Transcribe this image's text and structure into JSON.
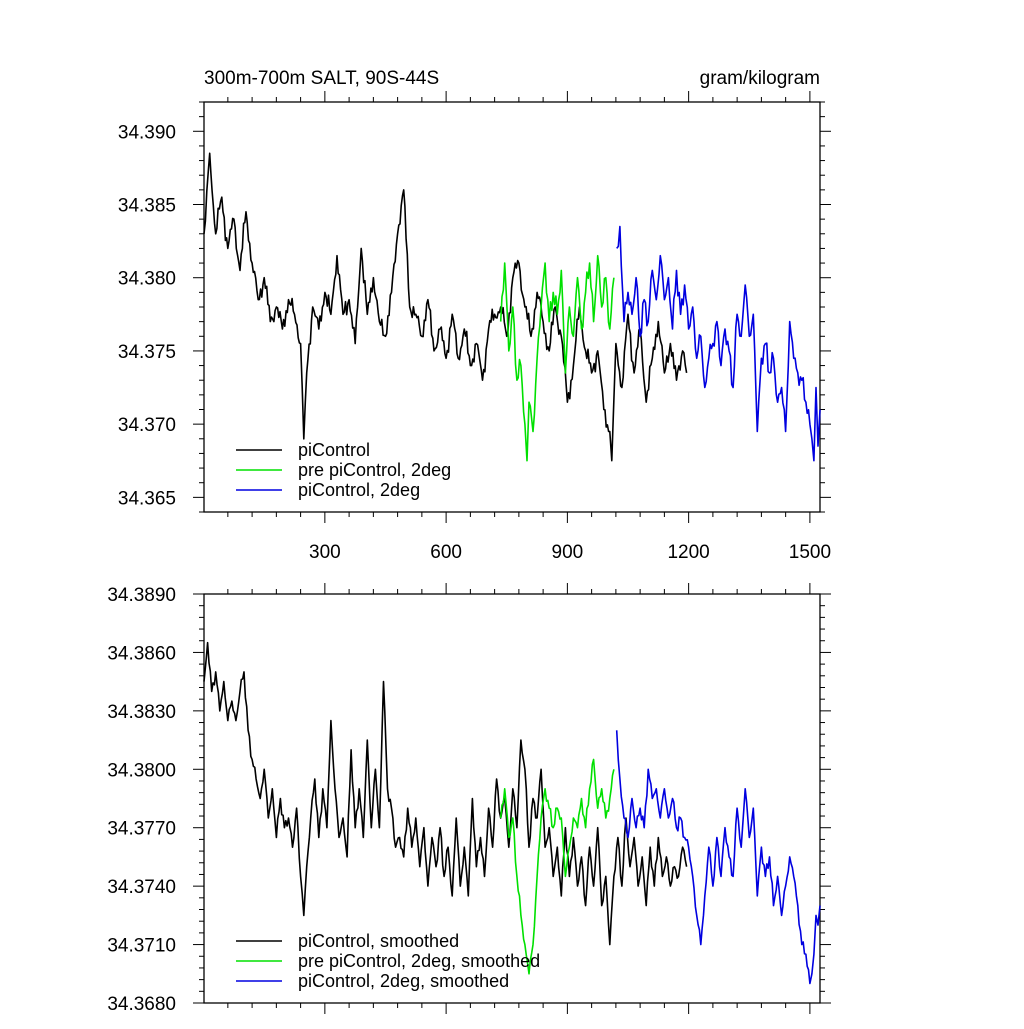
{
  "header": {
    "title": "300m-700m SALT, 90S-44S",
    "units": "gram/kilogram"
  },
  "colors": {
    "piControl": "#000000",
    "pre_piControl_2deg": "#00e000",
    "piControl_2deg": "#0000e0"
  },
  "chart_data": [
    {
      "type": "line",
      "title": "300m-700m SALT, 90S-44S",
      "units": "gram/kilogram",
      "xlabel": "",
      "ylabel": "",
      "xlim": [
        1,
        1525
      ],
      "ylim": [
        34.364,
        34.392
      ],
      "x_ticks": [
        300,
        600,
        900,
        1200,
        1500
      ],
      "x_tick_labels": [
        "300",
        "600",
        "900",
        "1200",
        "1500"
      ],
      "y_ticks": [
        34.365,
        34.37,
        34.375,
        34.38,
        34.385,
        34.39
      ],
      "y_tick_labels": [
        "34.365",
        "34.370",
        "34.375",
        "34.380",
        "34.385",
        "34.390"
      ],
      "grid": false,
      "legend": {
        "position": "bottom-left",
        "labels": [
          "piControl",
          "pre piControl, 2deg",
          "piControl, 2deg"
        ]
      },
      "series": [
        {
          "name": "piControl",
          "color": "#000000",
          "x": [
            1,
            15,
            30,
            45,
            60,
            75,
            90,
            105,
            120,
            135,
            150,
            165,
            180,
            195,
            210,
            225,
            240,
            248,
            255,
            270,
            285,
            300,
            315,
            330,
            345,
            360,
            375,
            390,
            405,
            420,
            435,
            450,
            465,
            480,
            495,
            510,
            525,
            540,
            555,
            570,
            585,
            600,
            615,
            630,
            645,
            660,
            675,
            690,
            705,
            720,
            735,
            750,
            765,
            780,
            795,
            810,
            825,
            840,
            855,
            870,
            885,
            900,
            915,
            930,
            945,
            960,
            975,
            990,
            1005,
            1010,
            1020,
            1035,
            1050,
            1065,
            1080,
            1095,
            1110,
            1125,
            1140,
            1155,
            1170,
            1185,
            1195
          ],
          "y": [
            34.383,
            34.3885,
            34.383,
            34.3855,
            34.382,
            34.384,
            34.3805,
            34.3845,
            34.381,
            34.3785,
            34.38,
            34.377,
            34.378,
            34.3765,
            34.3785,
            34.3775,
            34.3755,
            34.369,
            34.3735,
            34.378,
            34.3765,
            34.379,
            34.3775,
            34.3815,
            34.3775,
            34.3785,
            34.3755,
            34.382,
            34.3775,
            34.38,
            34.377,
            34.376,
            34.379,
            34.383,
            34.386,
            34.378,
            34.3775,
            34.376,
            34.3785,
            34.375,
            34.3765,
            34.3745,
            34.3775,
            34.3745,
            34.3765,
            34.374,
            34.3755,
            34.373,
            34.3765,
            34.3775,
            34.378,
            34.376,
            34.38,
            34.381,
            34.378,
            34.376,
            34.379,
            34.377,
            34.375,
            34.378,
            34.376,
            34.3715,
            34.374,
            34.378,
            34.375,
            34.3735,
            34.375,
            34.371,
            34.3695,
            34.3675,
            34.3755,
            34.3725,
            34.3775,
            34.3735,
            34.3765,
            34.3715,
            34.3745,
            34.377,
            34.3735,
            34.3755,
            34.373,
            34.375,
            34.3735
          ]
        },
        {
          "name": "pre piControl, 2deg",
          "color": "#00e000",
          "x": [
            735,
            745,
            755,
            765,
            775,
            785,
            795,
            800,
            805,
            815,
            825,
            835,
            845,
            855,
            865,
            875,
            885,
            895,
            905,
            915,
            925,
            935,
            945,
            955,
            965,
            975,
            985,
            995,
            1005,
            1015
          ],
          "y": [
            34.377,
            34.381,
            34.375,
            34.378,
            34.373,
            34.374,
            34.37,
            34.3675,
            34.3715,
            34.3695,
            34.3745,
            34.378,
            34.381,
            34.377,
            34.379,
            34.3775,
            34.3805,
            34.3735,
            34.378,
            34.376,
            34.38,
            34.3765,
            34.379,
            34.381,
            34.377,
            34.3815,
            34.378,
            34.38,
            34.3765,
            34.38
          ]
        },
        {
          "name": "piControl, 2deg",
          "color": "#0000e0",
          "x": [
            1022,
            1030,
            1040,
            1050,
            1060,
            1070,
            1080,
            1090,
            1100,
            1110,
            1120,
            1130,
            1140,
            1150,
            1160,
            1170,
            1180,
            1190,
            1200,
            1210,
            1220,
            1230,
            1240,
            1250,
            1260,
            1270,
            1280,
            1290,
            1300,
            1310,
            1320,
            1330,
            1340,
            1350,
            1360,
            1370,
            1380,
            1390,
            1400,
            1410,
            1420,
            1430,
            1440,
            1450,
            1460,
            1470,
            1480,
            1490,
            1500,
            1505,
            1510,
            1515,
            1520,
            1525
          ],
          "y": [
            34.382,
            34.3835,
            34.377,
            34.379,
            34.3775,
            34.38,
            34.376,
            34.3785,
            34.377,
            34.3805,
            34.3785,
            34.3815,
            34.3785,
            34.38,
            34.3765,
            34.3805,
            34.3775,
            34.3795,
            34.3765,
            34.378,
            34.3745,
            34.376,
            34.3725,
            34.3745,
            34.3755,
            34.377,
            34.374,
            34.3765,
            34.375,
            34.3725,
            34.3775,
            34.376,
            34.3795,
            34.376,
            34.3775,
            34.3695,
            34.3745,
            34.3755,
            34.3735,
            34.3745,
            34.3715,
            34.3725,
            34.3695,
            34.377,
            34.3745,
            34.3735,
            34.373,
            34.3715,
            34.37,
            34.369,
            34.3675,
            34.3725,
            34.3685,
            34.371
          ]
        }
      ]
    },
    {
      "type": "line",
      "title": "",
      "xlabel": "",
      "ylabel": "",
      "xlim": [
        1,
        1525
      ],
      "ylim": [
        34.368,
        34.389
      ],
      "x_ticks": [
        300,
        600,
        900,
        1200,
        1500
      ],
      "x_tick_labels": [],
      "y_ticks": [
        34.368,
        34.371,
        34.374,
        34.377,
        34.38,
        34.383,
        34.386,
        34.389
      ],
      "y_tick_labels": [
        "34.3680",
        "34.3710",
        "34.3740",
        "34.3770",
        "34.3800",
        "34.3830",
        "34.3860",
        "34.3890"
      ],
      "grid": false,
      "legend": {
        "position": "bottom-left",
        "labels": [
          "piControl, smoothed",
          "pre piControl, 2deg, smoothed",
          "piControl, 2deg, smoothed"
        ]
      },
      "series": [
        {
          "name": "piControl, smoothed",
          "color": "#000000",
          "x": [
            1,
            10,
            20,
            30,
            40,
            50,
            60,
            70,
            80,
            90,
            100,
            110,
            120,
            130,
            140,
            150,
            160,
            170,
            180,
            190,
            200,
            210,
            220,
            230,
            240,
            248,
            255,
            265,
            275,
            285,
            295,
            305,
            315,
            325,
            335,
            345,
            355,
            365,
            375,
            385,
            395,
            405,
            415,
            425,
            435,
            445,
            455,
            465,
            475,
            485,
            495,
            505,
            515,
            525,
            535,
            545,
            555,
            565,
            575,
            585,
            595,
            605,
            615,
            625,
            635,
            645,
            655,
            665,
            675,
            685,
            695,
            705,
            715,
            725,
            735,
            745,
            755,
            765,
            775,
            785,
            795,
            805,
            815,
            825,
            835,
            845,
            855,
            865,
            875,
            885,
            895,
            905,
            915,
            925,
            935,
            945,
            955,
            965,
            975,
            985,
            995,
            1005,
            1015,
            1025,
            1035,
            1045,
            1055,
            1065,
            1075,
            1085,
            1095,
            1105,
            1115,
            1125,
            1135,
            1145,
            1155,
            1165,
            1175,
            1185,
            1195
          ],
          "y": [
            34.3845,
            34.3865,
            34.384,
            34.385,
            34.383,
            34.3845,
            34.3825,
            34.3835,
            34.3825,
            34.384,
            34.385,
            34.382,
            34.3805,
            34.3795,
            34.3785,
            34.38,
            34.3775,
            34.379,
            34.3765,
            34.3785,
            34.377,
            34.3775,
            34.376,
            34.378,
            34.3745,
            34.3725,
            34.375,
            34.3775,
            34.3795,
            34.3765,
            34.379,
            34.377,
            34.3825,
            34.379,
            34.3765,
            34.3775,
            34.3755,
            34.381,
            34.377,
            34.379,
            34.3765,
            34.3815,
            34.377,
            34.38,
            34.377,
            34.3845,
            34.379,
            34.378,
            34.376,
            34.3765,
            34.3755,
            34.378,
            34.376,
            34.3775,
            34.375,
            34.377,
            34.374,
            34.3765,
            34.375,
            34.377,
            34.3745,
            34.376,
            34.3735,
            34.3775,
            34.374,
            34.376,
            34.3735,
            34.3785,
            34.375,
            34.3765,
            34.3745,
            34.378,
            34.376,
            34.3795,
            34.3775,
            34.3785,
            34.376,
            34.379,
            34.377,
            34.3815,
            34.38,
            34.376,
            34.3785,
            34.3775,
            34.38,
            34.376,
            34.377,
            34.3745,
            34.376,
            34.3735,
            34.377,
            34.3745,
            34.3765,
            34.374,
            34.3755,
            34.373,
            34.376,
            34.374,
            34.377,
            34.373,
            34.3745,
            34.371,
            34.3745,
            34.3765,
            34.374,
            34.3775,
            34.375,
            34.3765,
            34.374,
            34.3755,
            34.373,
            34.376,
            34.374,
            34.3765,
            34.3745,
            34.3755,
            34.374,
            34.375,
            34.3745,
            34.376,
            34.375
          ]
        },
        {
          "name": "pre piControl, 2deg, smoothed",
          "color": "#00e000",
          "x": [
            735,
            745,
            755,
            765,
            775,
            785,
            795,
            805,
            815,
            825,
            835,
            845,
            855,
            865,
            875,
            885,
            895,
            905,
            915,
            925,
            935,
            945,
            955,
            965,
            975,
            985,
            995,
            1005,
            1015
          ],
          "y": [
            34.3775,
            34.379,
            34.3765,
            34.3775,
            34.3745,
            34.3725,
            34.371,
            34.3695,
            34.371,
            34.3745,
            34.3775,
            34.379,
            34.378,
            34.377,
            34.378,
            34.3775,
            34.3745,
            34.376,
            34.3775,
            34.377,
            34.3785,
            34.377,
            34.379,
            34.3805,
            34.378,
            34.379,
            34.3775,
            34.3785,
            34.38
          ]
        },
        {
          "name": "piControl, 2deg, smoothed",
          "color": "#0000e0",
          "x": [
            1022,
            1030,
            1040,
            1050,
            1060,
            1070,
            1080,
            1090,
            1100,
            1110,
            1120,
            1130,
            1140,
            1150,
            1160,
            1170,
            1180,
            1190,
            1200,
            1210,
            1220,
            1230,
            1240,
            1250,
            1260,
            1270,
            1280,
            1290,
            1300,
            1310,
            1320,
            1330,
            1340,
            1350,
            1360,
            1370,
            1380,
            1390,
            1400,
            1410,
            1420,
            1430,
            1440,
            1450,
            1460,
            1470,
            1480,
            1490,
            1500,
            1505,
            1510,
            1515,
            1520,
            1525
          ],
          "y": [
            34.382,
            34.3795,
            34.3775,
            34.3765,
            34.3785,
            34.377,
            34.378,
            34.377,
            34.38,
            34.3785,
            34.379,
            34.3775,
            34.379,
            34.3775,
            34.3785,
            34.377,
            34.3775,
            34.3765,
            34.376,
            34.3745,
            34.3725,
            34.371,
            34.3735,
            34.376,
            34.374,
            34.3765,
            34.3745,
            34.377,
            34.3755,
            34.3745,
            34.378,
            34.376,
            34.379,
            34.3765,
            34.378,
            34.3735,
            34.376,
            34.3745,
            34.3755,
            34.373,
            34.3745,
            34.3725,
            34.374,
            34.3755,
            34.3745,
            34.373,
            34.371,
            34.3705,
            34.369,
            34.3695,
            34.3705,
            34.3725,
            34.372,
            34.373
          ]
        }
      ]
    }
  ]
}
